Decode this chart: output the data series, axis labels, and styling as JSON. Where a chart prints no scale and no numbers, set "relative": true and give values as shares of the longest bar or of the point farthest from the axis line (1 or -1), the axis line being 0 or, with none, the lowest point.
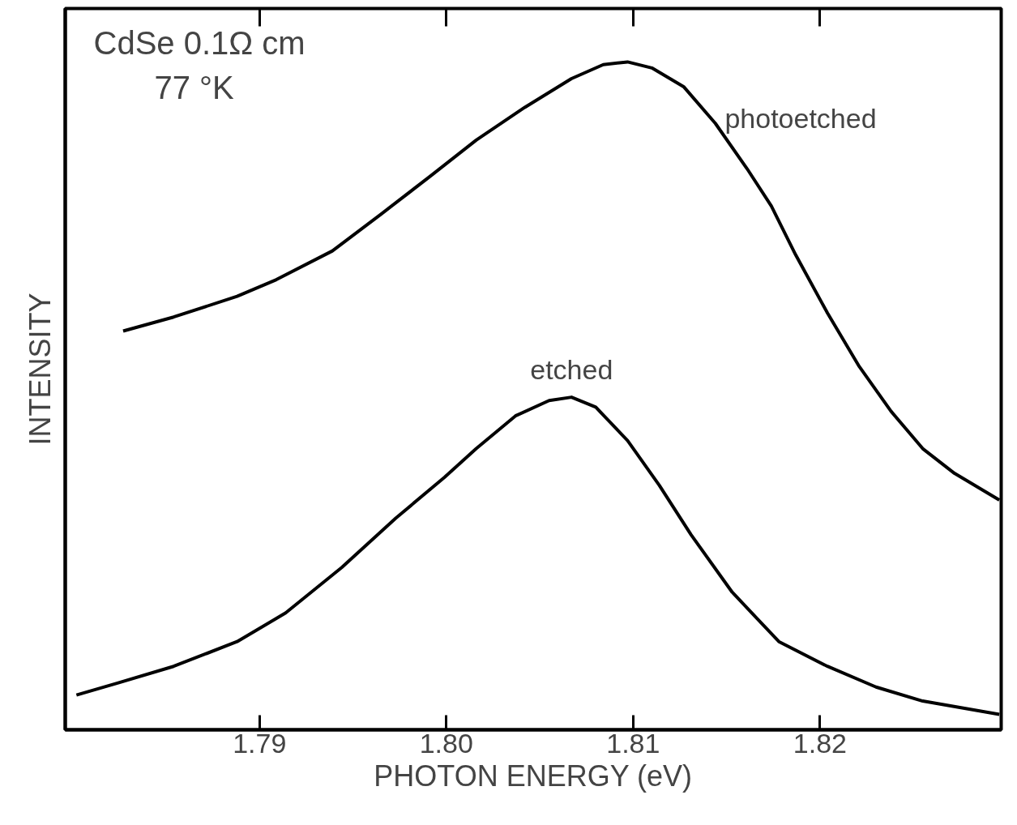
{
  "chart_data": {
    "type": "line",
    "relative": true,
    "xlabel": "PHOTON ENERGY (eV)",
    "ylabel": "INTENSITY",
    "xlim": [
      1.7796,
      1.8297
    ],
    "xticks": [
      1.79,
      {
        "value": 1.8,
        "label": "1.80"
      },
      1.81,
      1.82
    ],
    "tick_labels": "x",
    "grid": false,
    "marker": "none",
    "line_style": "solid",
    "annotations": [
      "CdSe 0.1Ω cm",
      "77 °K"
    ],
    "series": [
      {
        "name": "photoetched",
        "color": "#000000",
        "x": [
          1.7827,
          1.7854,
          1.7888,
          1.7909,
          1.7939,
          1.7965,
          1.7991,
          1.8016,
          1.8042,
          1.8067,
          1.8084,
          1.8097,
          1.811,
          1.8127,
          1.8144,
          1.8161,
          1.8174,
          1.8187,
          1.8204,
          1.8221,
          1.8238,
          1.8255,
          1.8272,
          1.8296
        ],
        "values": [
          0.597,
          0.618,
          0.649,
          0.674,
          0.717,
          0.772,
          0.828,
          0.883,
          0.932,
          0.975,
          0.996,
          1,
          0.991,
          0.963,
          0.908,
          0.84,
          0.784,
          0.711,
          0.624,
          0.544,
          0.477,
          0.421,
          0.384,
          0.344
        ]
      },
      {
        "name": "etched",
        "color": "#000000",
        "x": [
          1.7802,
          1.7824,
          1.7854,
          1.7888,
          1.7914,
          1.7944,
          1.7973,
          1.7999,
          1.8016,
          1.8037,
          1.8055,
          1.8067,
          1.808,
          1.8097,
          1.8114,
          1.8131,
          1.8153,
          1.8178,
          1.8204,
          1.823,
          1.8255,
          1.8296
        ],
        "values": [
          0.052,
          0.07,
          0.095,
          0.132,
          0.175,
          0.243,
          0.317,
          0.378,
          0.421,
          0.47,
          0.493,
          0.498,
          0.483,
          0.433,
          0.366,
          0.292,
          0.206,
          0.132,
          0.095,
          0.064,
          0.043,
          0.023
        ]
      }
    ]
  }
}
